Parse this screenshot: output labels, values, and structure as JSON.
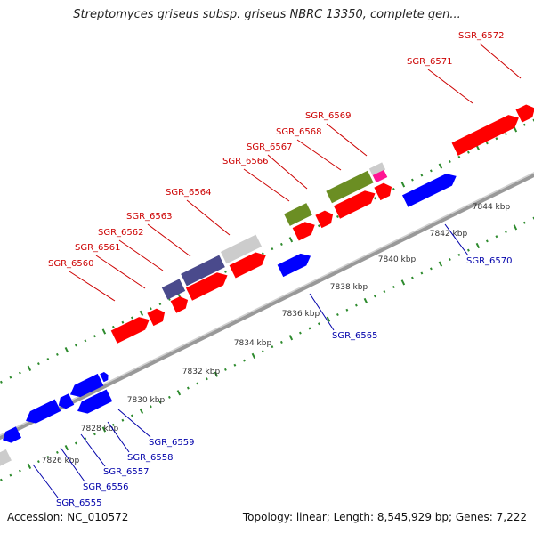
{
  "header": {
    "title": "Streptomyces griseus subsp. griseus NBRC 13350, complete gen..."
  },
  "footer": {
    "accession": "Accession: NC_010572",
    "summary": "Topology: linear; Length: 8,545,929 bp; Genes: 7,222"
  },
  "colors": {
    "forward_label": "#cc0000",
    "reverse_label": "#0000aa",
    "red_gene": "#ff0000",
    "blue_gene": "#0000ff",
    "purple_gene": "#4a4a8c",
    "olive_gene": "#6b8e23",
    "gray_gene": "#cccccc",
    "pink_gene": "#ff1493",
    "tick_green": "#2e8b2e",
    "backbone": "#999999"
  },
  "scale_ticks": [
    "7826 kbp",
    "7828 kbp",
    "7830 kbp",
    "7832 kbp",
    "7834 kbp",
    "7836 kbp",
    "7838 kbp",
    "7840 kbp",
    "7842 kbp",
    "7844 kbp"
  ],
  "genes_forward": [
    {
      "label": "SGR_6560"
    },
    {
      "label": "SGR_6561"
    },
    {
      "label": "SGR_6562"
    },
    {
      "label": "SGR_6563"
    },
    {
      "label": "SGR_6564"
    },
    {
      "label": "SGR_6566"
    },
    {
      "label": "SGR_6567"
    },
    {
      "label": "SGR_6568"
    },
    {
      "label": "SGR_6569"
    },
    {
      "label": "SGR_6571"
    },
    {
      "label": "SGR_6572"
    }
  ],
  "genes_reverse": [
    {
      "label": "SGR_6555"
    },
    {
      "label": "SGR_6556"
    },
    {
      "label": "SGR_6557"
    },
    {
      "label": "SGR_6558"
    },
    {
      "label": "SGR_6559"
    },
    {
      "label": "SGR_6565"
    },
    {
      "label": "SGR_6570"
    }
  ]
}
